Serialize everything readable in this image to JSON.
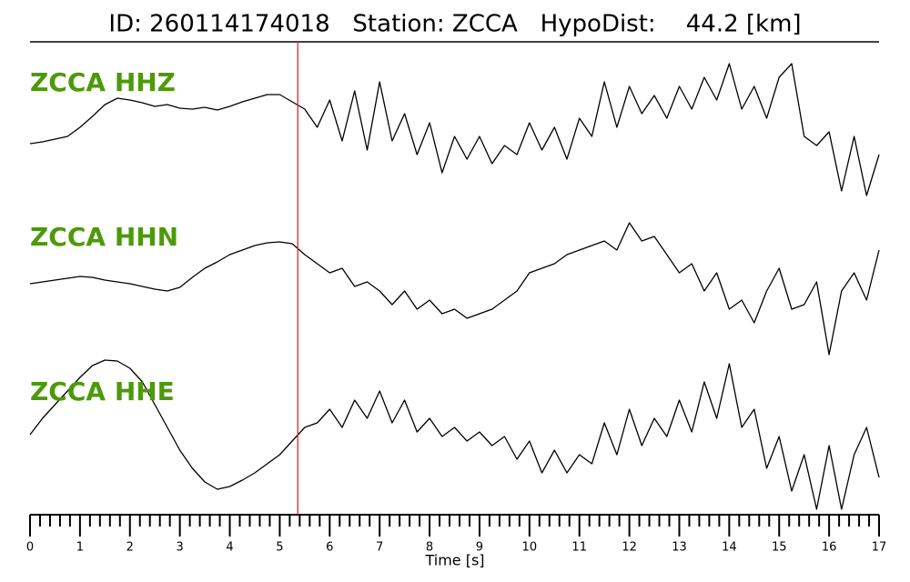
{
  "chart_data": {
    "type": "line",
    "title": "ID: 260114174018   Station: ZCCA   HypoDist:    44.2 [km]",
    "x_label": "Time [s]",
    "xlim": [
      0,
      17
    ],
    "xticks": [
      0,
      1,
      2,
      3,
      4,
      5,
      6,
      7,
      8,
      9,
      10,
      11,
      12,
      13,
      14,
      15,
      16,
      17
    ],
    "xticks_minor": [
      0.2,
      0.4,
      0.6,
      0.8,
      1.2,
      1.4,
      1.6,
      1.8,
      2.2,
      2.4,
      2.6,
      2.8,
      3.2,
      3.4,
      3.6,
      3.8,
      4.2,
      4.4,
      4.6,
      4.8,
      5.2,
      5.4,
      5.6,
      5.8,
      6.2,
      6.4,
      6.6,
      6.8,
      7.2,
      7.4,
      7.6,
      7.8,
      8.2,
      8.4,
      8.6,
      8.8,
      9.2,
      9.4,
      9.6,
      9.8,
      10.2,
      10.4,
      10.6,
      10.8,
      11.2,
      11.4,
      11.6,
      11.8,
      12.2,
      12.4,
      12.6,
      12.8,
      13.2,
      13.4,
      13.6,
      13.8,
      14.2,
      14.4,
      14.6,
      14.8,
      15.2,
      15.4,
      15.6,
      15.8,
      16.2,
      16.4,
      16.6,
      16.8
    ],
    "ylim": [
      -85,
      85
    ],
    "pick": {
      "x": 5.36,
      "color": "#e8202a"
    },
    "label_color": "#4c9a0a",
    "x": [
      0,
      0.25,
      0.5,
      0.75,
      1,
      1.25,
      1.5,
      1.75,
      2,
      2.25,
      2.5,
      2.75,
      3,
      3.25,
      3.5,
      3.75,
      4,
      4.25,
      4.5,
      4.75,
      5,
      5.25,
      5.5,
      5.75,
      6,
      6.25,
      6.5,
      6.75,
      7,
      7.25,
      7.5,
      7.75,
      8,
      8.25,
      8.5,
      8.75,
      9,
      9.25,
      9.5,
      9.75,
      10,
      10.25,
      10.5,
      10.75,
      11,
      11.25,
      11.5,
      11.75,
      12,
      12.25,
      12.5,
      12.75,
      13,
      13.25,
      13.5,
      13.75,
      14,
      14.25,
      14.5,
      14.75,
      15,
      15.25,
      15.5,
      15.75,
      16,
      16.25,
      16.5,
      16.75,
      17
    ],
    "series": [
      {
        "name": "ZCCA HHZ",
        "color": "#000000",
        "values": [
          -18,
          -16,
          -13,
          -10,
          0,
          12,
          25,
          32,
          30,
          27,
          23,
          25,
          21,
          20,
          22,
          19,
          23,
          28,
          32,
          36,
          36,
          28,
          20,
          0,
          30,
          -15,
          40,
          -25,
          50,
          -15,
          15,
          -30,
          5,
          -50,
          -10,
          -35,
          -10,
          -40,
          -20,
          -30,
          5,
          -25,
          0,
          -35,
          10,
          -10,
          50,
          0,
          45,
          15,
          35,
          10,
          45,
          20,
          55,
          30,
          70,
          20,
          45,
          10,
          55,
          70,
          -10,
          -20,
          -5,
          -70,
          -10,
          -75,
          -30
        ]
      },
      {
        "name": "ZCCA HHN",
        "color": "#000000",
        "values": [
          -2,
          0,
          2,
          4,
          6,
          5,
          2,
          0,
          -2,
          -5,
          -8,
          -10,
          -6,
          5,
          15,
          22,
          30,
          35,
          40,
          43,
          44,
          42,
          30,
          20,
          10,
          15,
          -5,
          0,
          -10,
          -25,
          -10,
          -30,
          -20,
          -35,
          -30,
          -40,
          -35,
          -30,
          -20,
          -10,
          10,
          15,
          20,
          30,
          35,
          40,
          45,
          35,
          65,
          45,
          50,
          30,
          10,
          20,
          -10,
          10,
          -30,
          -20,
          -45,
          -10,
          15,
          -30,
          -25,
          0,
          -80,
          -10,
          10,
          -20,
          35
        ]
      },
      {
        "name": "ZCCA HHE",
        "color": "#000000",
        "values": [
          2,
          20,
          35,
          50,
          65,
          78,
          84,
          83,
          75,
          60,
          35,
          10,
          -15,
          -35,
          -50,
          -58,
          -55,
          -48,
          -40,
          -30,
          -20,
          -5,
          10,
          15,
          30,
          10,
          40,
          20,
          50,
          15,
          40,
          5,
          20,
          0,
          10,
          -5,
          5,
          -10,
          0,
          -25,
          -5,
          -40,
          -15,
          -40,
          -20,
          -30,
          15,
          -20,
          30,
          -10,
          20,
          0,
          40,
          5,
          60,
          20,
          80,
          10,
          30,
          -35,
          0,
          -60,
          -20,
          -80,
          -10,
          -80,
          -20,
          10,
          -45
        ]
      }
    ]
  }
}
